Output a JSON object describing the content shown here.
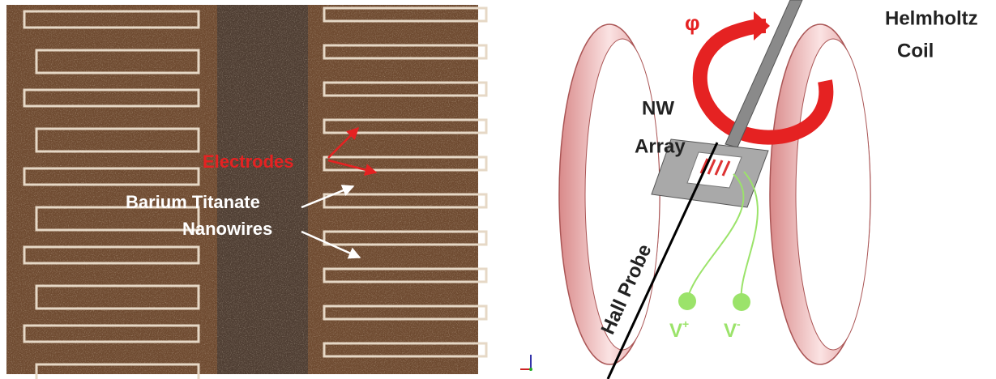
{
  "photo": {
    "electrodes": "Electrodes",
    "nanowires": [
      "Barium Titanate",
      "Nanowires"
    ]
  },
  "diagram": {
    "phi": "φ",
    "coil": [
      "Helmholtz",
      "Coil"
    ],
    "nw_array": [
      "NW",
      "Array"
    ],
    "hall_probe": "Hall Probe",
    "v_plus": {
      "base": "V",
      "sup": "+"
    },
    "v_minus": {
      "base": "V",
      "sup": "-"
    }
  }
}
